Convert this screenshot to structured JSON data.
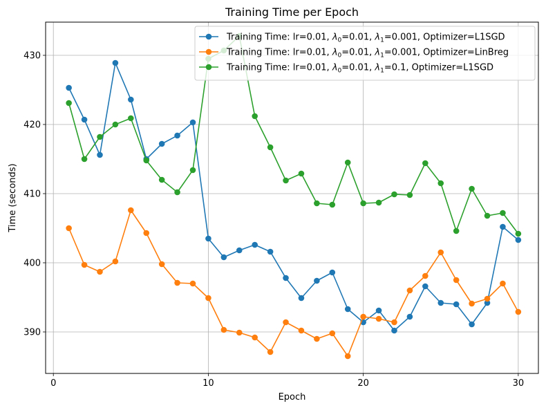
{
  "chart_data": {
    "type": "line",
    "title": "Training Time per Epoch",
    "xlabel": "Epoch",
    "ylabel": "Time (seconds)",
    "xlim": [
      -0.5,
      31.3
    ],
    "ylim": [
      384.0,
      434.8
    ],
    "x_ticks": [
      0,
      10,
      20,
      30
    ],
    "y_ticks": [
      390,
      400,
      410,
      420,
      430
    ],
    "grid": true,
    "legend_position": "top-right",
    "x": [
      1,
      2,
      3,
      4,
      5,
      6,
      7,
      8,
      9,
      10,
      11,
      12,
      13,
      14,
      15,
      16,
      17,
      18,
      19,
      20,
      21,
      22,
      23,
      24,
      25,
      26,
      27,
      28,
      29,
      30
    ],
    "series": [
      {
        "name_parts": [
          "Training Time: lr=0.01, ",
          "λ",
          "0",
          "=0.01, ",
          "λ",
          "1",
          "=0.001, Optimizer=L1SGD"
        ],
        "color": "#1f77b4",
        "values": [
          425.3,
          420.7,
          415.6,
          428.9,
          423.6,
          415.0,
          417.2,
          418.4,
          420.3,
          403.5,
          400.8,
          401.8,
          402.6,
          401.6,
          397.8,
          394.9,
          397.4,
          398.6,
          393.3,
          391.4,
          393.1,
          390.2,
          392.2,
          396.6,
          394.2,
          394.0,
          391.1,
          394.2,
          405.2,
          403.3
        ]
      },
      {
        "name_parts": [
          "Training Time: lr=0.01, ",
          "λ",
          "0",
          "=0.01, ",
          "λ",
          "1",
          "=0.001, Optimizer=LinBreg"
        ],
        "color": "#ff7f0e",
        "values": [
          405.0,
          399.7,
          398.7,
          400.2,
          407.6,
          404.3,
          399.8,
          397.1,
          397.0,
          394.9,
          390.3,
          389.9,
          389.2,
          387.1,
          391.4,
          390.2,
          389.0,
          389.8,
          386.5,
          392.2,
          391.9,
          391.4,
          396.0,
          398.1,
          401.5,
          397.5,
          394.1,
          394.8,
          397.0,
          392.9
        ]
      },
      {
        "name_parts": [
          "Training Time: lr=0.01, ",
          "λ",
          "0",
          "=0.01, ",
          "λ",
          "1",
          "=0.1, Optimizer=L1SGD"
        ],
        "color": "#2ca02c",
        "values": [
          423.1,
          415.0,
          418.2,
          420.0,
          420.9,
          414.8,
          412.0,
          410.2,
          413.4,
          429.5,
          430.7,
          432.8,
          421.2,
          416.7,
          411.9,
          412.9,
          408.6,
          408.4,
          414.5,
          408.6,
          408.7,
          409.9,
          409.8,
          414.4,
          411.5,
          404.6,
          410.7,
          406.8,
          407.2,
          404.2
        ]
      }
    ]
  }
}
